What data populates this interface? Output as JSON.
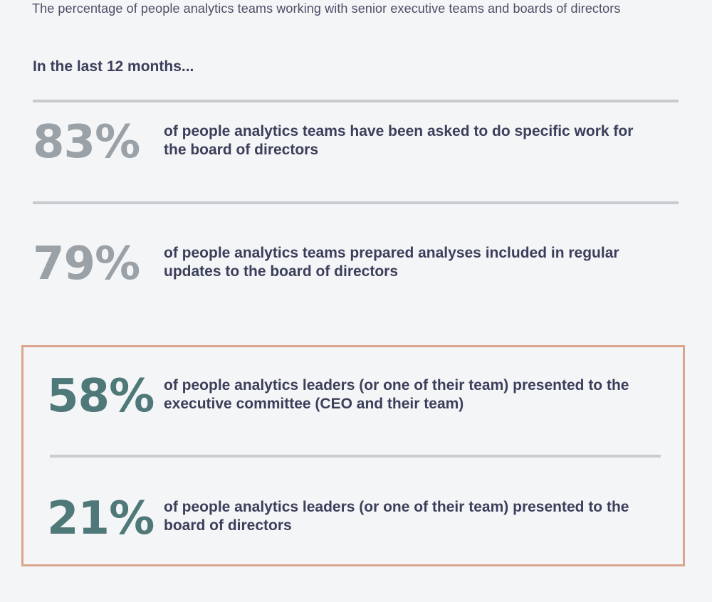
{
  "header": {
    "subtitle": "The percentage of people analytics teams working with senior executive teams and boards of directors",
    "intro": "In the last 12 months..."
  },
  "chart_data": {
    "type": "table",
    "title": "The percentage of people analytics teams working with senior executive teams and boards of directors",
    "subtitle": "In the last 12 months...",
    "unit": "%",
    "rows": [
      {
        "value": 83,
        "label": "83%",
        "description": "of people analytics teams have been asked to do specific work for the board of directors",
        "highlighted": false
      },
      {
        "value": 79,
        "label": "79%",
        "description": "of people analytics teams prepared analyses included in regular updates to the board of directors",
        "highlighted": false
      },
      {
        "value": 58,
        "label": "58%",
        "description": "of people analytics leaders (or one of their team) presented to the executive committee (CEO and their team)",
        "highlighted": true
      },
      {
        "value": 21,
        "label": "21%",
        "description": "of people analytics leaders (or one of their team) presented to the board of directors",
        "highlighted": true
      }
    ],
    "colors": {
      "stat_default": "#9aa2a7",
      "stat_highlight": "#4f7878",
      "highlight_border": "#dba58d",
      "rule": "#c7ccd1",
      "text": "#3b3f5a"
    }
  }
}
